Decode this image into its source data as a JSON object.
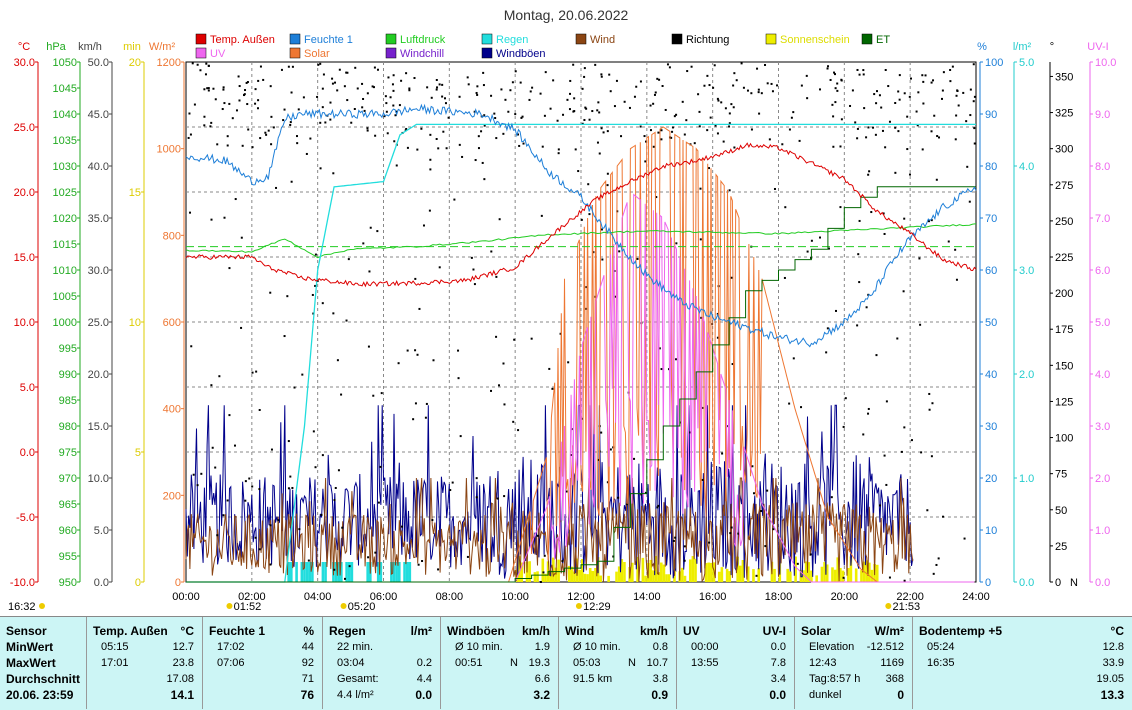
{
  "chart_data": {
    "type": "line",
    "title": "Montag, 20.06.2022",
    "x_ticks": [
      "00:00",
      "02:00",
      "04:00",
      "06:00",
      "08:00",
      "10:00",
      "12:00",
      "14:00",
      "16:00",
      "18:00",
      "20:00",
      "22:00",
      "24:00"
    ],
    "legend": [
      {
        "label": "Temp. Außen",
        "color": "#dd0000"
      },
      {
        "label": "Feuchte 1",
        "color": "#1e7fd8"
      },
      {
        "label": "Luftdruck",
        "color": "#22cc22"
      },
      {
        "label": "Regen",
        "color": "#22dddd"
      },
      {
        "label": "Wind",
        "color": "#8b4513"
      },
      {
        "label": "Richtung",
        "color": "#000000"
      },
      {
        "label": "Sonnenschein",
        "color": "#eeee00"
      },
      {
        "label": "ET",
        "color": "#006600"
      },
      {
        "label": "UV",
        "color": "#ee66ee"
      },
      {
        "label": "Solar",
        "color": "#ee7733"
      },
      {
        "label": "Windchill",
        "color": "#7722cc"
      },
      {
        "label": "Windböen",
        "color": "#00008b"
      }
    ],
    "left_axes": [
      {
        "unit": "°C",
        "color": "#dd0000",
        "ticks": [
          "30.0",
          "25.0",
          "20.0",
          "15.0",
          "10.0",
          "5.0",
          "0.0",
          "-5.0",
          "-10.0"
        ]
      },
      {
        "unit": "hPa",
        "color": "#22aa22",
        "ticks": [
          "1050",
          "1045",
          "1040",
          "1035",
          "1030",
          "1025",
          "1020",
          "1015",
          "1010",
          "1005",
          "1000",
          "995",
          "990",
          "985",
          "980",
          "975",
          "970",
          "965",
          "960",
          "955",
          "950"
        ]
      },
      {
        "unit": "km/h",
        "color": "#444444",
        "ticks": [
          "50.0",
          "45.0",
          "40.0",
          "35.0",
          "30.0",
          "25.0",
          "20.0",
          "15.0",
          "10.0",
          "5.0",
          "0.0"
        ]
      },
      {
        "unit": "min",
        "color": "#ddcc00",
        "ticks": [
          "20",
          "15",
          "10",
          "5",
          "0"
        ]
      },
      {
        "unit": "W/m²",
        "color": "#ee7733",
        "ticks": [
          "1200",
          "1000",
          "800",
          "600",
          "400",
          "200",
          "0"
        ]
      }
    ],
    "right_axes": [
      {
        "unit": "%",
        "color": "#1e7fd8",
        "ticks": [
          "100",
          "90",
          "80",
          "70",
          "60",
          "50",
          "40",
          "30",
          "20",
          "10",
          "0"
        ]
      },
      {
        "unit": "l/m²",
        "color": "#22cccc",
        "ticks": [
          "5.0",
          "4.0",
          "3.0",
          "2.0",
          "1.0",
          "0.0"
        ]
      },
      {
        "unit": "°",
        "color": "#000000",
        "ticks": [
          "350",
          "325",
          "300",
          "275",
          "250",
          "225",
          "200",
          "175",
          "150",
          "125",
          "100",
          "75",
          "50",
          "25",
          "0"
        ],
        "bottom_label": "N"
      },
      {
        "unit": "UV-I",
        "color": "#ee66ee",
        "ticks": [
          "10.0",
          "9.0",
          "8.0",
          "7.0",
          "6.0",
          "5.0",
          "4.0",
          "3.0",
          "2.0",
          "1.0",
          "0.0"
        ]
      }
    ],
    "series": [
      {
        "name": "Temp. Außen",
        "points": [
          [
            0,
            15.0
          ],
          [
            2,
            15.0
          ],
          [
            2.5,
            14.2
          ],
          [
            3.5,
            13.4
          ],
          [
            5.2,
            12.9
          ],
          [
            7,
            13.0
          ],
          [
            8.5,
            13.2
          ],
          [
            10,
            14.2
          ],
          [
            10.8,
            16.0
          ],
          [
            11.5,
            17.5
          ],
          [
            12.5,
            19.5
          ],
          [
            13.5,
            20.8
          ],
          [
            14.5,
            22.0
          ],
          [
            15.5,
            22.4
          ],
          [
            16.5,
            23.1
          ],
          [
            17.0,
            23.6
          ],
          [
            18.0,
            23.4
          ],
          [
            19,
            22.2
          ],
          [
            20,
            21.0
          ],
          [
            21,
            18.5
          ],
          [
            22,
            16.8
          ],
          [
            23.0,
            14.8
          ],
          [
            24,
            14.0
          ]
        ]
      },
      {
        "name": "Feuchte 1",
        "points": [
          [
            0,
            82
          ],
          [
            1.2,
            81
          ],
          [
            2,
            77
          ],
          [
            2.5,
            78
          ],
          [
            3,
            89
          ],
          [
            3.5,
            90
          ],
          [
            6,
            90
          ],
          [
            7.0,
            91
          ],
          [
            9,
            90
          ],
          [
            10.0,
            87
          ],
          [
            11,
            79
          ],
          [
            12,
            74
          ],
          [
            13,
            66
          ],
          [
            14,
            59
          ],
          [
            15,
            54
          ],
          [
            16,
            51
          ],
          [
            17,
            49
          ],
          [
            18,
            47
          ],
          [
            19,
            46
          ],
          [
            20,
            50
          ],
          [
            20.8,
            55
          ],
          [
            21.5,
            62
          ],
          [
            22,
            66
          ],
          [
            23,
            72
          ],
          [
            24,
            76
          ]
        ]
      },
      {
        "name": "Luftdruck",
        "points": [
          [
            0,
            1013.8
          ],
          [
            2,
            1013.5
          ],
          [
            3,
            1016.0
          ],
          [
            4,
            1012.5
          ],
          [
            5,
            1014.0
          ],
          [
            7,
            1014.5
          ],
          [
            9,
            1015.5
          ],
          [
            11,
            1016.8
          ],
          [
            14,
            1017.5
          ],
          [
            18,
            1017.0
          ],
          [
            22,
            1018.2
          ],
          [
            24,
            1018.8
          ]
        ]
      },
      {
        "name": "Regen",
        "points": [
          [
            0,
            0
          ],
          [
            3.0,
            0
          ],
          [
            3.6,
            1.5
          ],
          [
            4.0,
            3.0
          ],
          [
            4.5,
            3.8
          ],
          [
            6,
            3.85
          ],
          [
            6.5,
            4.3
          ],
          [
            7.0,
            4.4
          ],
          [
            24,
            4.4
          ]
        ]
      },
      {
        "name": "ET",
        "points": [
          [
            0,
            0
          ],
          [
            9.5,
            0
          ],
          [
            12.5,
            0.2
          ],
          [
            14.5,
            1.5
          ],
          [
            17,
            2.8
          ],
          [
            19,
            3.2
          ],
          [
            20,
            3.6
          ],
          [
            21,
            3.8
          ],
          [
            24,
            3.8
          ]
        ]
      },
      {
        "name": "Solar",
        "points": [
          [
            0,
            0
          ],
          [
            9.8,
            0
          ],
          [
            11.0,
            300
          ],
          [
            11.5,
            700
          ],
          [
            12.5,
            900
          ],
          [
            13.5,
            1000
          ],
          [
            14.5,
            1050
          ],
          [
            15.5,
            1000
          ],
          [
            16.5,
            900
          ],
          [
            17.5,
            700
          ],
          [
            18.5,
            400
          ],
          [
            19.5,
            150
          ],
          [
            20.5,
            30
          ],
          [
            21.0,
            0
          ],
          [
            24,
            0
          ]
        ]
      },
      {
        "name": "UV",
        "points": [
          [
            0,
            0
          ],
          [
            10.0,
            0
          ],
          [
            11.0,
            1.5
          ],
          [
            12.0,
            4.5
          ],
          [
            13.0,
            6.5
          ],
          [
            13.5,
            7.5
          ],
          [
            14.5,
            7.0
          ],
          [
            15.5,
            5.5
          ],
          [
            16.5,
            3.5
          ],
          [
            17.5,
            1.5
          ],
          [
            18.5,
            0.3
          ],
          [
            19,
            0
          ],
          [
            24,
            0
          ]
        ]
      }
    ],
    "markers": [
      {
        "time": "01:52",
        "symbol": "sun-low"
      },
      {
        "time": "05:20",
        "symbol": "sunrise"
      },
      {
        "time": "12:29",
        "symbol": "noon"
      },
      {
        "time": "21:53",
        "symbol": "sunset"
      }
    ],
    "corner_label": "16:32"
  },
  "stats": {
    "columns": [
      {
        "title": "Sensor",
        "unit": "",
        "rows": [
          [
            "MinWert",
            "",
            ""
          ],
          [
            "MaxWert",
            "",
            ""
          ],
          [
            "Durchschnitt",
            "",
            ""
          ],
          [
            "20.06. 23:59",
            "",
            ""
          ]
        ]
      },
      {
        "title": "Temp. Außen",
        "unit": "°C",
        "rows": [
          [
            "05:15",
            "",
            "12.7"
          ],
          [
            "17:01",
            "",
            "23.8"
          ],
          [
            "",
            "",
            "17.08"
          ],
          [
            "",
            "",
            "14.1"
          ]
        ]
      },
      {
        "title": "Feuchte 1",
        "unit": "%",
        "rows": [
          [
            "17:02",
            "",
            "44"
          ],
          [
            "07:06",
            "",
            "92"
          ],
          [
            "",
            "",
            "71"
          ],
          [
            "",
            "",
            "76"
          ]
        ]
      },
      {
        "title": "Regen",
        "unit": "l/m²",
        "rows": [
          [
            "22 min.",
            "",
            ""
          ],
          [
            "03:04",
            "",
            "0.2"
          ],
          [
            "Gesamt:",
            "",
            "4.4"
          ],
          [
            "4.4 l/m²",
            "",
            "0.0"
          ]
        ]
      },
      {
        "title": "Windböen",
        "unit": "km/h",
        "rows": [
          [
            "Ø 10 min.",
            "",
            "1.9"
          ],
          [
            "00:51",
            "N",
            "19.3"
          ],
          [
            "",
            "",
            "6.6"
          ],
          [
            "",
            "",
            "3.2"
          ]
        ]
      },
      {
        "title": "Wind",
        "unit": "km/h",
        "rows": [
          [
            "Ø 10 min.",
            "",
            "0.8"
          ],
          [
            "05:03",
            "N",
            "10.7"
          ],
          [
            "91.5 km",
            "",
            "3.8"
          ],
          [
            "",
            "",
            "0.9"
          ]
        ]
      },
      {
        "title": "UV",
        "unit": "UV-I",
        "rows": [
          [
            "00:00",
            "",
            "0.0"
          ],
          [
            "13:55",
            "",
            "7.8"
          ],
          [
            "",
            "",
            "3.4"
          ],
          [
            "",
            "",
            "0.0"
          ]
        ]
      },
      {
        "title": "Solar",
        "unit": "W/m²",
        "rows": [
          [
            "Elevation",
            "",
            "-12.512"
          ],
          [
            "12:43",
            "",
            "1169"
          ],
          [
            "Tag:8:57 h",
            "",
            "368"
          ],
          [
            "dunkel",
            "",
            "0"
          ]
        ]
      },
      {
        "title": "Bodentemp +5",
        "unit": "°C",
        "rows": [
          [
            "05:24",
            "",
            "12.8"
          ],
          [
            "16:35",
            "",
            "33.9"
          ],
          [
            "",
            "",
            "19.05"
          ],
          [
            "",
            "",
            "13.3"
          ]
        ]
      }
    ]
  }
}
